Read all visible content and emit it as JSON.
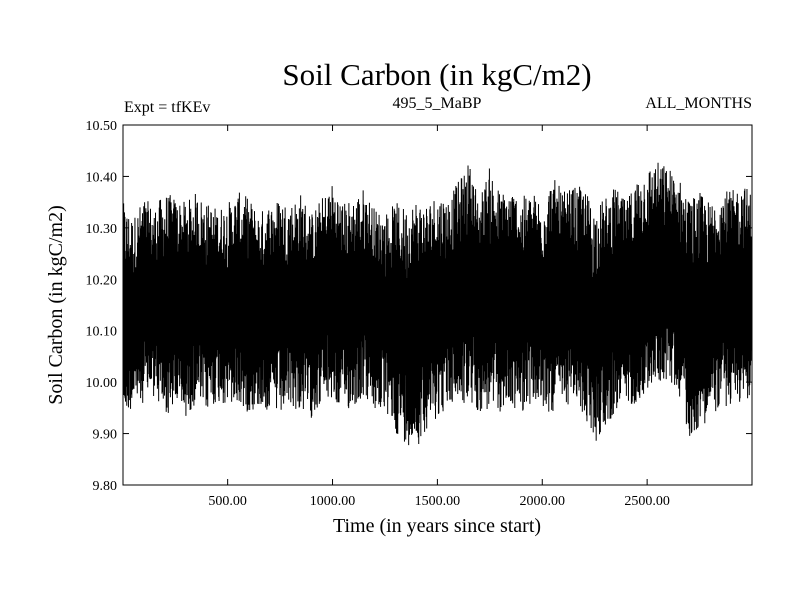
{
  "chart_data": {
    "type": "line",
    "title": "Soil Carbon (in kgC/m2)",
    "subtitle_left": "Expt = tfKEv",
    "subtitle_center": "495_5_MaBP",
    "subtitle_right": "ALL_MONTHS",
    "xlabel": "Time (in years since start)",
    "ylabel": "Soil Carbon (in kgC/m2)",
    "xlim": [
      1,
      3000
    ],
    "ylim": [
      9.8,
      10.5
    ],
    "x_ticks": [
      500,
      1000,
      1500,
      2000,
      2500
    ],
    "x_tick_labels": [
      "500.00",
      "1000.00",
      "1500.00",
      "2000.00",
      "2500.00"
    ],
    "y_ticks": [
      9.8,
      9.9,
      10.0,
      10.1,
      10.2,
      10.3,
      10.4,
      10.5
    ],
    "y_tick_labels": [
      "9.80",
      "9.90",
      "10.00",
      "10.10",
      "10.20",
      "10.30",
      "10.40",
      "10.50"
    ],
    "grid": false,
    "legend": "none",
    "series": [
      {
        "color": "#000000",
        "envelope_x": [
          1,
          50,
          100,
          150,
          200,
          250,
          300,
          350,
          400,
          450,
          500,
          550,
          600,
          650,
          700,
          750,
          800,
          850,
          900,
          950,
          1000,
          1050,
          1100,
          1150,
          1200,
          1250,
          1300,
          1350,
          1400,
          1450,
          1500,
          1550,
          1600,
          1650,
          1700,
          1750,
          1800,
          1850,
          1900,
          1950,
          2000,
          2050,
          2100,
          2150,
          2200,
          2250,
          2300,
          2350,
          2400,
          2450,
          2500,
          2550,
          2600,
          2650,
          2700,
          2750,
          2800,
          2850,
          2900,
          2950,
          3000
        ],
        "envelope_max": [
          10.35,
          10.32,
          10.36,
          10.34,
          10.37,
          10.36,
          10.35,
          10.37,
          10.35,
          10.34,
          10.35,
          10.37,
          10.36,
          10.33,
          10.35,
          10.36,
          10.35,
          10.37,
          10.33,
          10.36,
          10.39,
          10.35,
          10.36,
          10.38,
          10.34,
          10.33,
          10.35,
          10.34,
          10.36,
          10.35,
          10.37,
          10.36,
          10.39,
          10.43,
          10.36,
          10.42,
          10.37,
          10.38,
          10.36,
          10.37,
          10.36,
          10.4,
          10.37,
          10.38,
          10.38,
          10.34,
          10.36,
          10.38,
          10.35,
          10.4,
          10.42,
          10.43,
          10.42,
          10.4,
          10.36,
          10.37,
          10.35,
          10.38,
          10.37,
          10.39,
          10.37
        ],
        "envelope_min": [
          9.93,
          9.95,
          9.96,
          9.97,
          9.93,
          9.95,
          9.93,
          9.96,
          9.94,
          9.96,
          9.95,
          9.95,
          9.94,
          9.95,
          9.94,
          9.93,
          9.95,
          9.94,
          9.93,
          9.96,
          9.96,
          9.94,
          9.95,
          9.97,
          9.94,
          9.94,
          9.9,
          9.88,
          9.87,
          9.91,
          9.93,
          9.95,
          9.96,
          9.95,
          9.94,
          9.94,
          9.94,
          9.95,
          9.94,
          9.96,
          9.94,
          9.94,
          9.95,
          9.96,
          9.93,
          9.88,
          9.91,
          9.94,
          9.95,
          9.96,
          9.98,
          10.0,
          10.0,
          9.98,
          9.89,
          9.91,
          9.93,
          9.95,
          9.95,
          9.96,
          9.97
        ],
        "mean": 10.15
      }
    ]
  }
}
